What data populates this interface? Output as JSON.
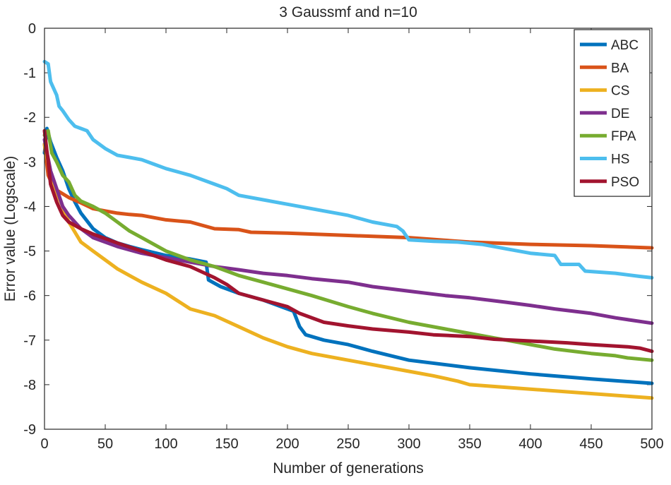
{
  "chart_data": {
    "type": "line",
    "title": "3 Gaussmf and n=10",
    "xlabel": "Number of generations",
    "ylabel": "Error value (Logscale)",
    "xlim": [
      0,
      500
    ],
    "ylim": [
      -9,
      0
    ],
    "xticks": [
      "0",
      "50",
      "100",
      "150",
      "200",
      "250",
      "300",
      "350",
      "400",
      "450",
      "500"
    ],
    "yticks": [
      "0",
      "-1",
      "-2",
      "-3",
      "-4",
      "-5",
      "-6",
      "-7",
      "-8",
      "-9"
    ],
    "grid": false,
    "legend_position": "top-right",
    "series": [
      {
        "name": "ABC",
        "color": "#0072BD",
        "points": [
          [
            0,
            -2.8
          ],
          [
            2,
            -2.25
          ],
          [
            5,
            -2.55
          ],
          [
            10,
            -2.9
          ],
          [
            15,
            -3.2
          ],
          [
            20,
            -3.6
          ],
          [
            25,
            -3.9
          ],
          [
            30,
            -4.15
          ],
          [
            40,
            -4.5
          ],
          [
            50,
            -4.7
          ],
          [
            60,
            -4.82
          ],
          [
            70,
            -4.9
          ],
          [
            80,
            -4.97
          ],
          [
            100,
            -5.1
          ],
          [
            120,
            -5.18
          ],
          [
            133,
            -5.25
          ],
          [
            135,
            -5.65
          ],
          [
            145,
            -5.8
          ],
          [
            160,
            -5.95
          ],
          [
            180,
            -6.1
          ],
          [
            200,
            -6.3
          ],
          [
            205,
            -6.35
          ],
          [
            210,
            -6.7
          ],
          [
            215,
            -6.88
          ],
          [
            230,
            -7.0
          ],
          [
            250,
            -7.1
          ],
          [
            270,
            -7.25
          ],
          [
            300,
            -7.45
          ],
          [
            350,
            -7.62
          ],
          [
            400,
            -7.76
          ],
          [
            450,
            -7.87
          ],
          [
            500,
            -7.97
          ]
        ]
      },
      {
        "name": "BA",
        "color": "#D95319",
        "points": [
          [
            0,
            -2.6
          ],
          [
            3,
            -3.3
          ],
          [
            8,
            -3.6
          ],
          [
            20,
            -3.8
          ],
          [
            30,
            -3.92
          ],
          [
            40,
            -4.05
          ],
          [
            50,
            -4.1
          ],
          [
            60,
            -4.15
          ],
          [
            70,
            -4.18
          ],
          [
            80,
            -4.2
          ],
          [
            100,
            -4.3
          ],
          [
            120,
            -4.35
          ],
          [
            140,
            -4.5
          ],
          [
            160,
            -4.52
          ],
          [
            170,
            -4.58
          ],
          [
            200,
            -4.6
          ],
          [
            250,
            -4.65
          ],
          [
            300,
            -4.7
          ],
          [
            350,
            -4.8
          ],
          [
            400,
            -4.85
          ],
          [
            450,
            -4.88
          ],
          [
            500,
            -4.93
          ]
        ]
      },
      {
        "name": "CS",
        "color": "#EDB120",
        "points": [
          [
            0,
            -2.6
          ],
          [
            5,
            -3.3
          ],
          [
            10,
            -3.7
          ],
          [
            15,
            -4.0
          ],
          [
            20,
            -4.35
          ],
          [
            30,
            -4.8
          ],
          [
            40,
            -5.0
          ],
          [
            50,
            -5.2
          ],
          [
            60,
            -5.4
          ],
          [
            70,
            -5.55
          ],
          [
            80,
            -5.7
          ],
          [
            100,
            -5.95
          ],
          [
            120,
            -6.3
          ],
          [
            140,
            -6.45
          ],
          [
            160,
            -6.7
          ],
          [
            180,
            -6.95
          ],
          [
            200,
            -7.15
          ],
          [
            220,
            -7.3
          ],
          [
            250,
            -7.45
          ],
          [
            270,
            -7.55
          ],
          [
            300,
            -7.7
          ],
          [
            320,
            -7.8
          ],
          [
            340,
            -7.92
          ],
          [
            350,
            -8.0
          ],
          [
            400,
            -8.1
          ],
          [
            450,
            -8.2
          ],
          [
            500,
            -8.3
          ]
        ]
      },
      {
        "name": "DE",
        "color": "#7E2F8E",
        "points": [
          [
            0,
            -2.5
          ],
          [
            5,
            -3.2
          ],
          [
            10,
            -3.6
          ],
          [
            15,
            -4.0
          ],
          [
            20,
            -4.2
          ],
          [
            30,
            -4.5
          ],
          [
            40,
            -4.7
          ],
          [
            60,
            -4.9
          ],
          [
            80,
            -5.05
          ],
          [
            100,
            -5.15
          ],
          [
            120,
            -5.25
          ],
          [
            140,
            -5.35
          ],
          [
            160,
            -5.42
          ],
          [
            180,
            -5.5
          ],
          [
            200,
            -5.55
          ],
          [
            220,
            -5.62
          ],
          [
            250,
            -5.7
          ],
          [
            270,
            -5.8
          ],
          [
            300,
            -5.9
          ],
          [
            330,
            -6.0
          ],
          [
            350,
            -6.05
          ],
          [
            380,
            -6.15
          ],
          [
            400,
            -6.22
          ],
          [
            420,
            -6.3
          ],
          [
            450,
            -6.4
          ],
          [
            470,
            -6.5
          ],
          [
            500,
            -6.62
          ]
        ]
      },
      {
        "name": "FPA",
        "color": "#77AC30",
        "points": [
          [
            0,
            -2.4
          ],
          [
            3,
            -2.3
          ],
          [
            6,
            -2.8
          ],
          [
            10,
            -3.0
          ],
          [
            15,
            -3.3
          ],
          [
            20,
            -3.45
          ],
          [
            25,
            -3.75
          ],
          [
            30,
            -3.88
          ],
          [
            40,
            -4.0
          ],
          [
            50,
            -4.15
          ],
          [
            60,
            -4.35
          ],
          [
            70,
            -4.55
          ],
          [
            80,
            -4.7
          ],
          [
            90,
            -4.85
          ],
          [
            100,
            -5.0
          ],
          [
            120,
            -5.2
          ],
          [
            140,
            -5.35
          ],
          [
            160,
            -5.55
          ],
          [
            180,
            -5.7
          ],
          [
            200,
            -5.85
          ],
          [
            220,
            -6.0
          ],
          [
            250,
            -6.25
          ],
          [
            270,
            -6.4
          ],
          [
            300,
            -6.6
          ],
          [
            330,
            -6.75
          ],
          [
            360,
            -6.9
          ],
          [
            390,
            -7.05
          ],
          [
            420,
            -7.2
          ],
          [
            450,
            -7.3
          ],
          [
            470,
            -7.35
          ],
          [
            480,
            -7.4
          ],
          [
            500,
            -7.45
          ]
        ]
      },
      {
        "name": "HS",
        "color": "#4DBEEE",
        "points": [
          [
            0,
            -0.75
          ],
          [
            3,
            -0.8
          ],
          [
            5,
            -1.2
          ],
          [
            10,
            -1.5
          ],
          [
            12,
            -1.75
          ],
          [
            15,
            -1.85
          ],
          [
            20,
            -2.05
          ],
          [
            25,
            -2.2
          ],
          [
            30,
            -2.25
          ],
          [
            35,
            -2.3
          ],
          [
            40,
            -2.5
          ],
          [
            50,
            -2.7
          ],
          [
            60,
            -2.85
          ],
          [
            70,
            -2.9
          ],
          [
            80,
            -2.95
          ],
          [
            90,
            -3.05
          ],
          [
            100,
            -3.15
          ],
          [
            120,
            -3.3
          ],
          [
            140,
            -3.5
          ],
          [
            150,
            -3.6
          ],
          [
            160,
            -3.75
          ],
          [
            180,
            -3.85
          ],
          [
            200,
            -3.95
          ],
          [
            230,
            -4.1
          ],
          [
            250,
            -4.2
          ],
          [
            270,
            -4.35
          ],
          [
            290,
            -4.45
          ],
          [
            295,
            -4.55
          ],
          [
            300,
            -4.75
          ],
          [
            320,
            -4.78
          ],
          [
            340,
            -4.8
          ],
          [
            360,
            -4.85
          ],
          [
            380,
            -4.95
          ],
          [
            400,
            -5.05
          ],
          [
            420,
            -5.1
          ],
          [
            425,
            -5.3
          ],
          [
            440,
            -5.3
          ],
          [
            445,
            -5.45
          ],
          [
            470,
            -5.5
          ],
          [
            490,
            -5.57
          ],
          [
            500,
            -5.6
          ]
        ]
      },
      {
        "name": "PSO",
        "color": "#A2142F",
        "points": [
          [
            0,
            -2.3
          ],
          [
            3,
            -3.0
          ],
          [
            5,
            -3.5
          ],
          [
            10,
            -3.9
          ],
          [
            15,
            -4.2
          ],
          [
            20,
            -4.35
          ],
          [
            30,
            -4.5
          ],
          [
            40,
            -4.62
          ],
          [
            50,
            -4.72
          ],
          [
            60,
            -4.82
          ],
          [
            80,
            -5.0
          ],
          [
            100,
            -5.2
          ],
          [
            120,
            -5.35
          ],
          [
            140,
            -5.6
          ],
          [
            150,
            -5.75
          ],
          [
            160,
            -5.95
          ],
          [
            180,
            -6.1
          ],
          [
            200,
            -6.25
          ],
          [
            210,
            -6.4
          ],
          [
            230,
            -6.6
          ],
          [
            250,
            -6.68
          ],
          [
            270,
            -6.75
          ],
          [
            300,
            -6.82
          ],
          [
            320,
            -6.88
          ],
          [
            350,
            -6.92
          ],
          [
            370,
            -6.98
          ],
          [
            400,
            -7.02
          ],
          [
            430,
            -7.06
          ],
          [
            450,
            -7.1
          ],
          [
            480,
            -7.15
          ],
          [
            490,
            -7.18
          ],
          [
            500,
            -7.25
          ]
        ]
      }
    ]
  }
}
